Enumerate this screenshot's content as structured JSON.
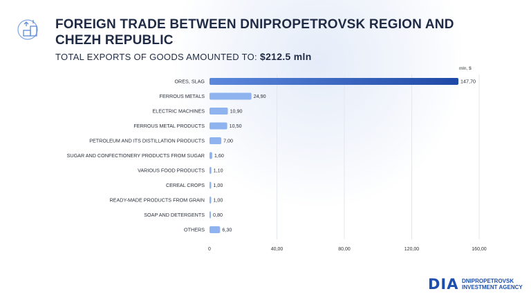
{
  "header": {
    "title": "FOREIGN TRADE BETWEEN DNIPROPETROVSK REGION AND CHEZH REPUBLIC",
    "subtitle_label": "TOTAL EXPORTS OF GOODS AMOUNTED TO:",
    "subtitle_amount": "$212.5 mln",
    "icon": "export-boxes-icon"
  },
  "chart_data": {
    "type": "bar",
    "orientation": "horizontal",
    "unit": "mln, $",
    "categories": [
      "ORES, SLAG",
      "FERROUS METALS",
      "ELECTRIC MACHINES",
      "FERROUS METAL PRODUCTS",
      "PETROLEUM AND ITS DISTILLATION PRODUCTS",
      "SUGAR AND CONFECTIONERY PRODUCTS FROM SUGAR",
      "VARIOUS FOOD PRODUCTS",
      "CEREAL CROPS",
      "READY-MADE PRODUCTS FROM GRAIN",
      "SOAP AND DETERGENTS",
      "OTHERS"
    ],
    "values": [
      147.7,
      24.9,
      10.9,
      10.5,
      7.0,
      1.6,
      1.1,
      1.0,
      1.0,
      0.8,
      6.3
    ],
    "value_labels": [
      "147,70",
      "24,90",
      "10,90",
      "10,50",
      "7,00",
      "1,60",
      "1,10",
      "1,00",
      "1,00",
      "0,80",
      "6,30"
    ],
    "xlim": [
      0,
      160
    ],
    "x_ticks": [
      0,
      40,
      80,
      120,
      160
    ],
    "x_tick_labels": [
      "0",
      "40,00",
      "80,00",
      "120,00",
      "160,00"
    ],
    "grid": true,
    "colors": {
      "bar_highlight_start": "#1f4aa8",
      "bar_highlight_end": "#4f7fd8",
      "bar_default": "#8fb3ee"
    }
  },
  "footer": {
    "brand": "DIA",
    "agency_line1": "DNIPROPETROVSK",
    "agency_line2": "INVESTMENT AGENCY"
  }
}
